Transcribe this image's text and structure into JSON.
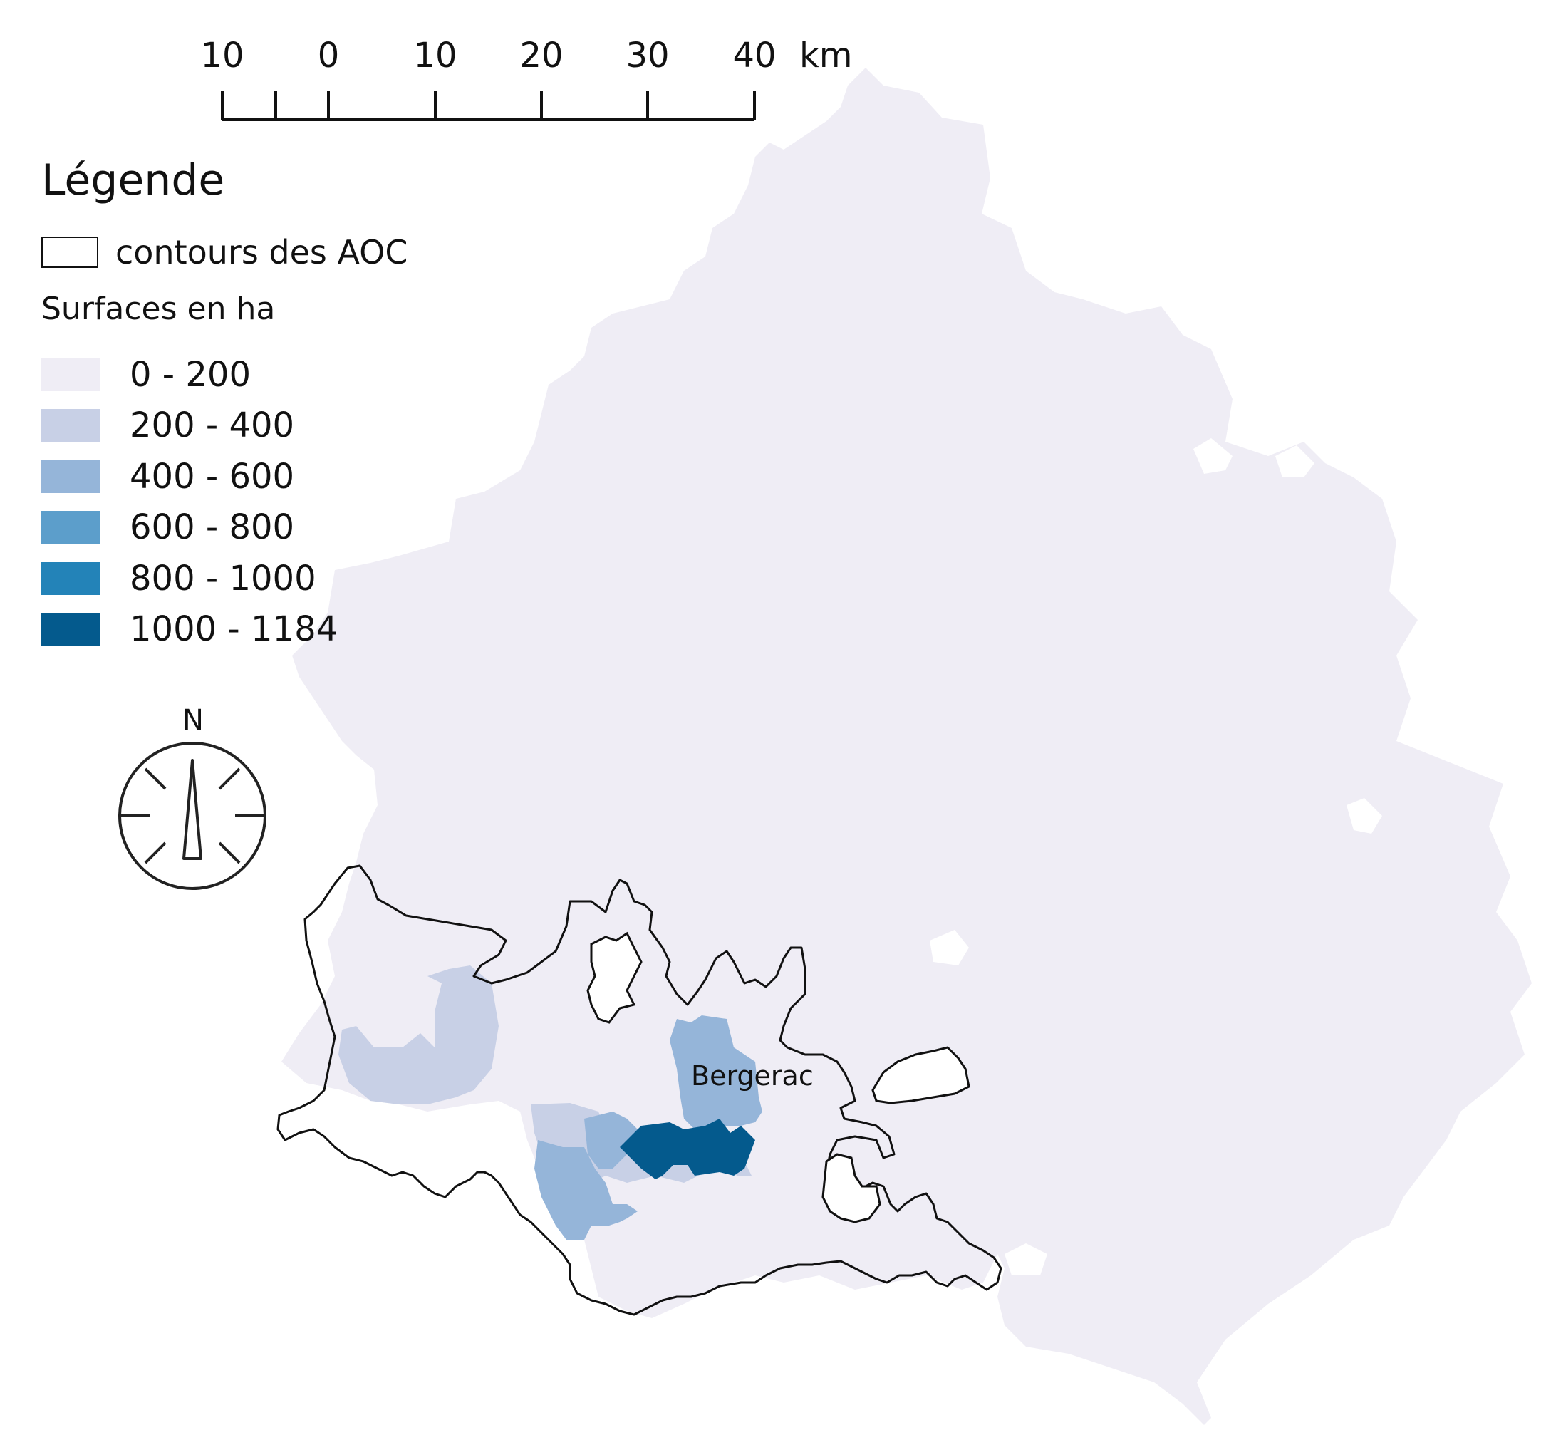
{
  "legend": {
    "title": "Légende",
    "aoc_label": "contours des AOC",
    "surfaces_label": "Surfaces en ha",
    "classes": [
      {
        "label": "0 - 200",
        "color": "#efedf5"
      },
      {
        "label": "200 - 400",
        "color": "#c8d0e6"
      },
      {
        "label": "400 - 600",
        "color": "#95b5d9"
      },
      {
        "label": "600 - 800",
        "color": "#5c9ecb"
      },
      {
        "label": "800 - 1000",
        "color": "#2383b8"
      },
      {
        "label": "1000 - 1184",
        "color": "#045a8d"
      }
    ]
  },
  "scale_bar": {
    "labels": [
      "10",
      "0",
      "10",
      "20",
      "30",
      "40"
    ],
    "unit": "km"
  },
  "north_arrow": {
    "label": "N"
  },
  "places": {
    "city": "Bergerac"
  },
  "icons": {
    "north_arrow": "compass-rose-icon"
  }
}
